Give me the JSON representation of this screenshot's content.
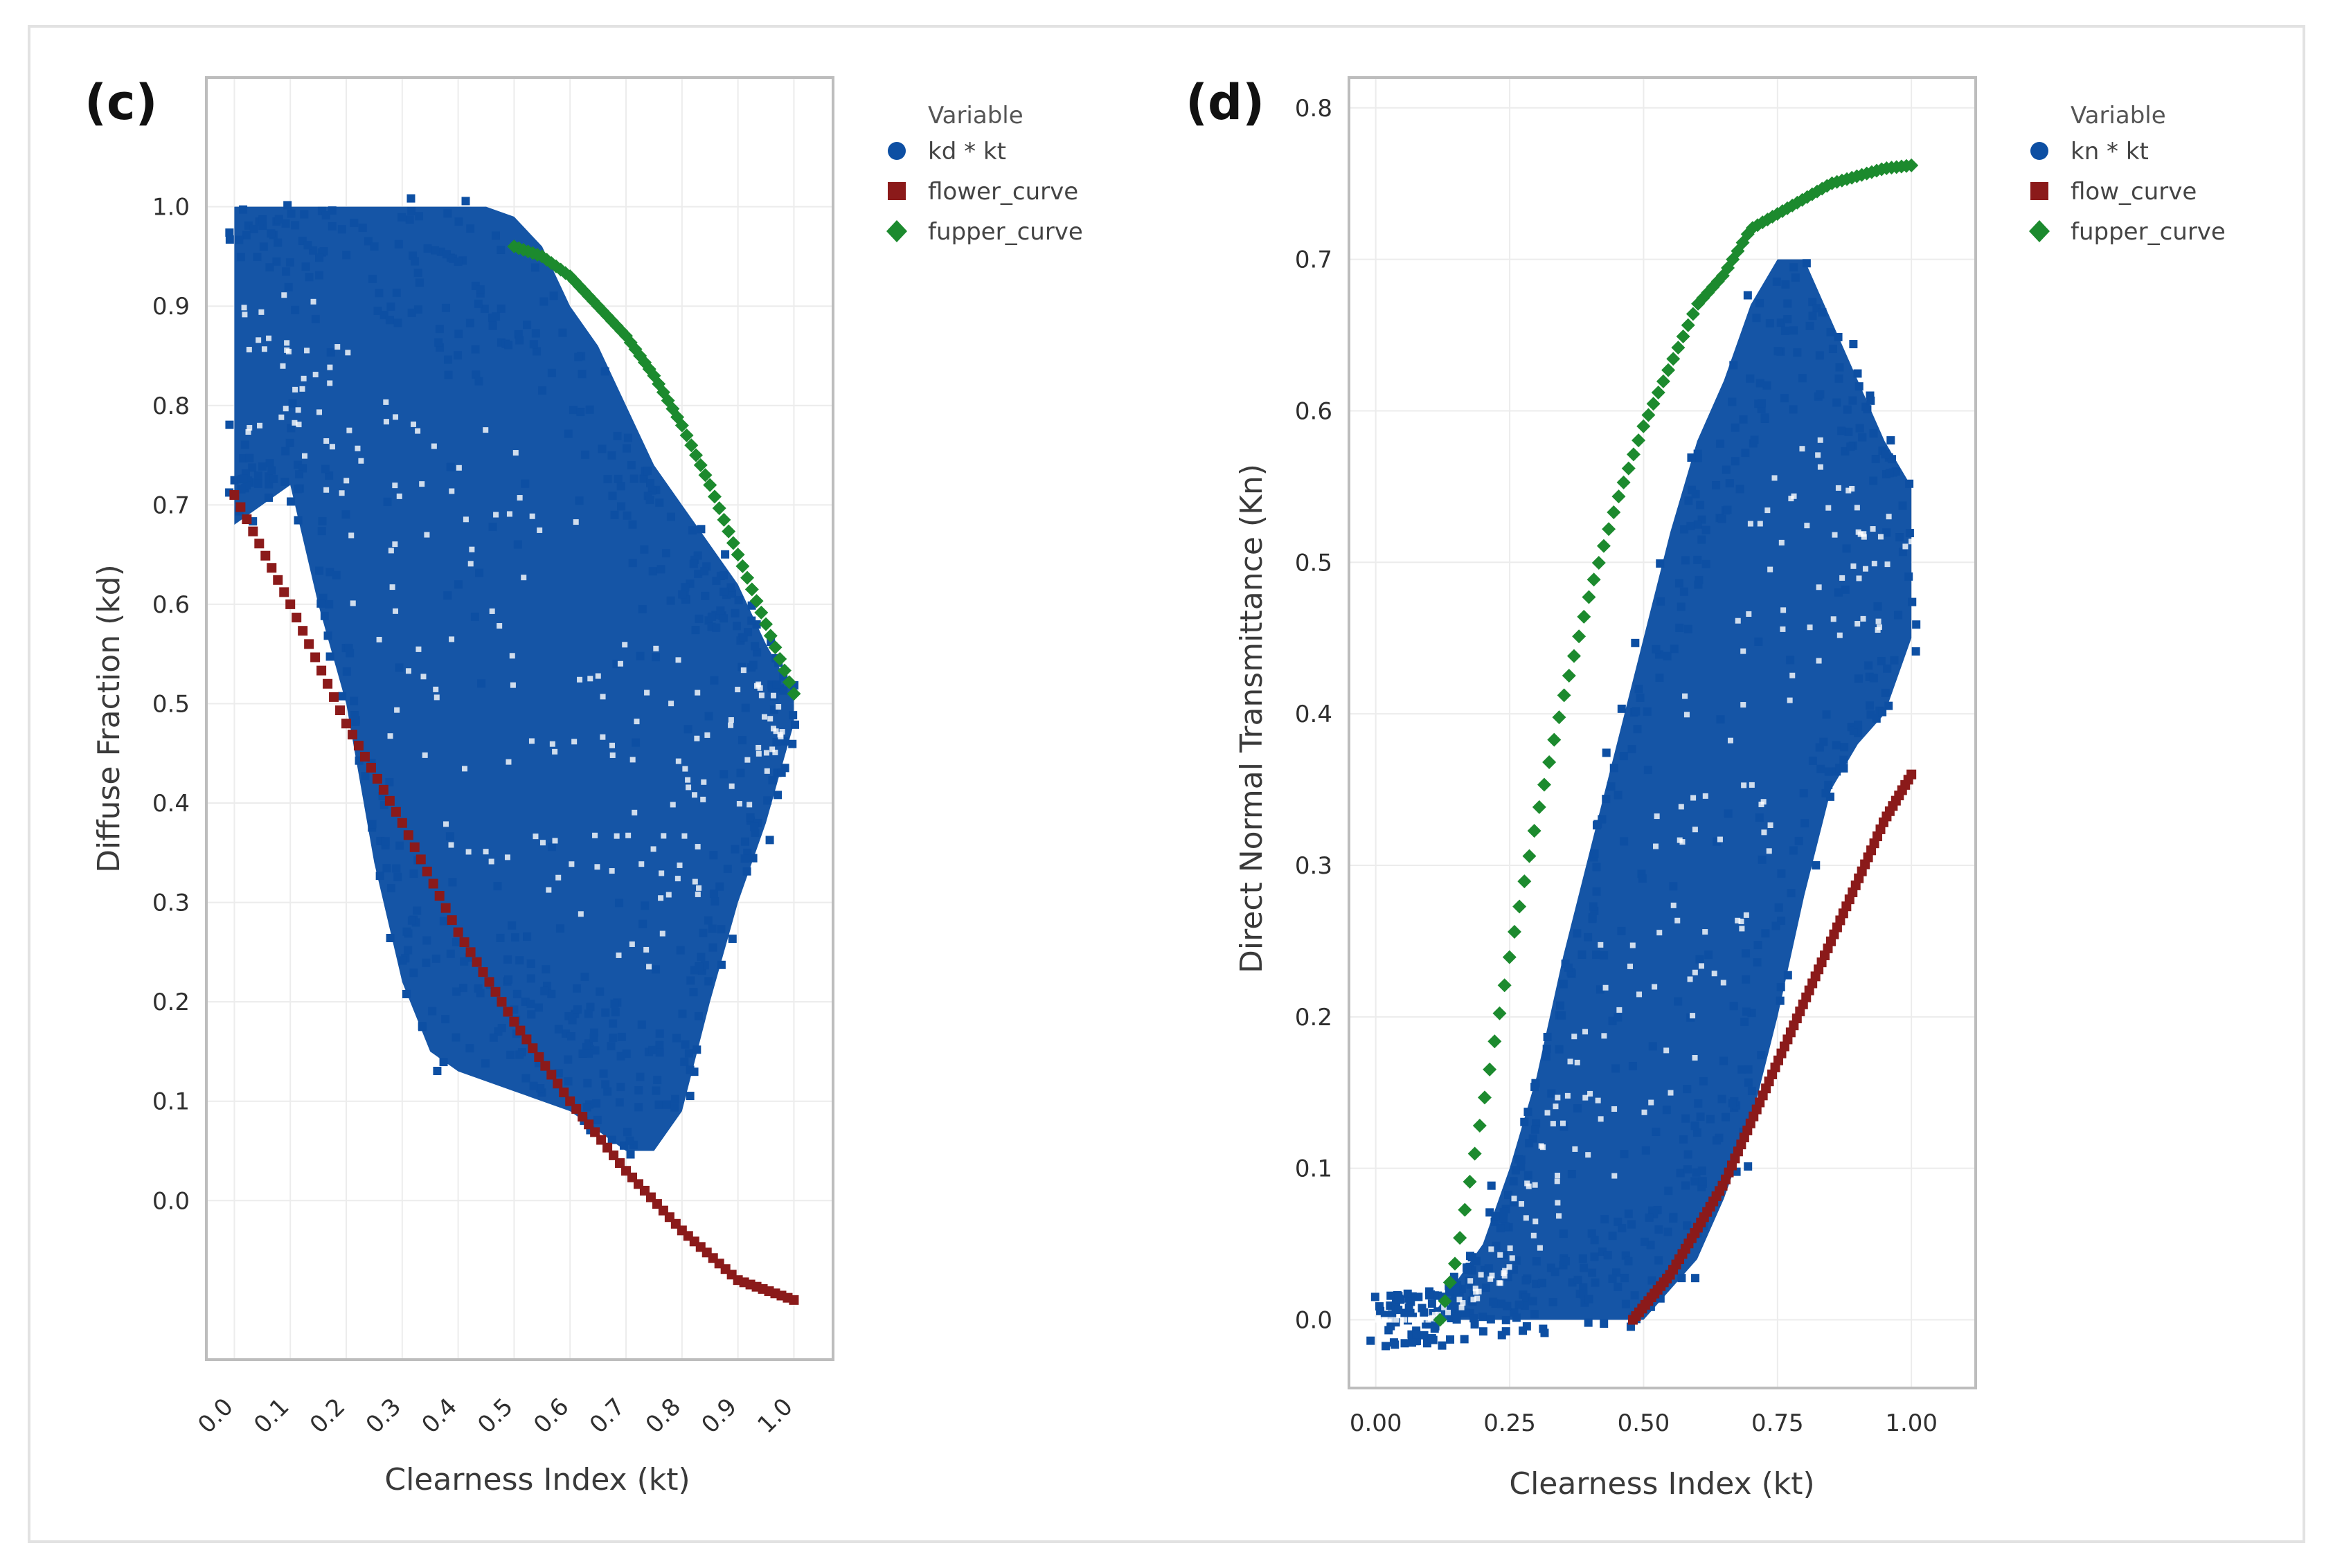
{
  "colors": {
    "observed": "#0d4fa3",
    "lower": "#8b1a1a",
    "upper": "#1c8a2e",
    "grid": "#ececec",
    "frame": "#bdbdbd"
  },
  "chart_data": [
    {
      "panel": "(c)",
      "type": "scatter",
      "xlabel": "Clearness Index (kt)",
      "ylabel": "Diffuse Fraction (kd)",
      "xlim": [
        -0.05,
        1.07
      ],
      "ylim": [
        -0.16,
        1.13
      ],
      "x_ticks": [
        0.0,
        0.1,
        0.2,
        0.3,
        0.4,
        0.5,
        0.6,
        0.7,
        0.8,
        0.9,
        1.0
      ],
      "x_tick_labels": [
        "0.0",
        "0.1",
        "0.2",
        "0.3",
        "0.4",
        "0.5",
        "0.6",
        "0.7",
        "0.8",
        "0.9",
        "1.0"
      ],
      "y_ticks": [
        0.0,
        0.1,
        0.2,
        0.3,
        0.4,
        0.5,
        0.6,
        0.7,
        0.8,
        0.9,
        1.0
      ],
      "y_tick_labels": [
        "0.0",
        "0.1",
        "0.2",
        "0.3",
        "0.4",
        "0.5",
        "0.6",
        "0.7",
        "0.8",
        "0.9",
        "1.0"
      ],
      "legend": {
        "title": "Variable",
        "position": "right",
        "items": [
          {
            "label": "kd * kt",
            "marker": "circle",
            "color": "#0d4fa3"
          },
          {
            "label": "flower_curve",
            "marker": "square",
            "color": "#8b1a1a"
          },
          {
            "label": "fupper_curve",
            "marker": "diamond",
            "color": "#1c8a2e"
          }
        ]
      },
      "series": [
        {
          "name": "kd * kt",
          "kind": "density_band",
          "x": [
            0.0,
            0.05,
            0.1,
            0.15,
            0.2,
            0.25,
            0.3,
            0.35,
            0.4,
            0.45,
            0.5,
            0.55,
            0.6,
            0.65,
            0.7,
            0.75,
            0.8,
            0.85,
            0.9,
            0.95,
            1.0
          ],
          "lower": [
            0.68,
            0.7,
            0.72,
            0.6,
            0.5,
            0.34,
            0.22,
            0.15,
            0.13,
            0.12,
            0.11,
            0.1,
            0.09,
            0.07,
            0.05,
            0.05,
            0.09,
            0.2,
            0.3,
            0.38,
            0.48
          ],
          "upper": [
            1.0,
            1.0,
            1.0,
            1.0,
            1.0,
            1.0,
            1.0,
            1.0,
            1.0,
            1.0,
            0.99,
            0.96,
            0.9,
            0.86,
            0.8,
            0.74,
            0.7,
            0.66,
            0.62,
            0.56,
            0.51
          ]
        },
        {
          "name": "flower_curve",
          "x": [
            0.0,
            0.1,
            0.2,
            0.3,
            0.4,
            0.5,
            0.6,
            0.7,
            0.8,
            0.9,
            1.0
          ],
          "y": [
            0.71,
            0.6,
            0.48,
            0.38,
            0.27,
            0.18,
            0.1,
            0.03,
            -0.03,
            -0.08,
            -0.1
          ]
        },
        {
          "name": "fupper_curve",
          "x": [
            0.5,
            0.55,
            0.6,
            0.65,
            0.7,
            0.75,
            0.8,
            0.85,
            0.9,
            0.95,
            1.0
          ],
          "y": [
            0.96,
            0.95,
            0.93,
            0.9,
            0.87,
            0.83,
            0.78,
            0.72,
            0.65,
            0.58,
            0.51
          ]
        }
      ]
    },
    {
      "panel": "(d)",
      "type": "scatter",
      "xlabel": "Clearness Index (kt)",
      "ylabel": "Direct Normal Transmittance (Kn)",
      "xlim": [
        -0.05,
        1.12
      ],
      "ylim": [
        -0.045,
        0.82
      ],
      "x_ticks": [
        0.0,
        0.25,
        0.5,
        0.75,
        1.0
      ],
      "x_tick_labels": [
        "0.00",
        "0.25",
        "0.50",
        "0.75",
        "1.00"
      ],
      "y_ticks": [
        0.0,
        0.1,
        0.2,
        0.3,
        0.4,
        0.5,
        0.6,
        0.7,
        0.8
      ],
      "y_tick_labels": [
        "0.0",
        "0.1",
        "0.2",
        "0.3",
        "0.4",
        "0.5",
        "0.6",
        "0.7",
        "0.8"
      ],
      "legend": {
        "title": "Variable",
        "position": "right",
        "items": [
          {
            "label": "kn * kt",
            "marker": "circle",
            "color": "#0d4fa3"
          },
          {
            "label": "flow_curve",
            "marker": "square",
            "color": "#8b1a1a"
          },
          {
            "label": "fupper_curve",
            "marker": "diamond",
            "color": "#1c8a2e"
          }
        ]
      },
      "series": [
        {
          "name": "kn * kt",
          "kind": "density_band",
          "x": [
            0.0,
            0.1,
            0.2,
            0.25,
            0.3,
            0.35,
            0.4,
            0.45,
            0.5,
            0.55,
            0.6,
            0.65,
            0.7,
            0.75,
            0.8,
            0.85,
            0.9,
            0.95,
            1.0
          ],
          "lower": [
            0.0,
            0.0,
            0.0,
            0.0,
            0.0,
            0.0,
            0.0,
            0.0,
            0.0,
            0.02,
            0.04,
            0.08,
            0.13,
            0.2,
            0.28,
            0.35,
            0.38,
            0.4,
            0.45
          ],
          "upper": [
            0.0,
            0.0,
            0.05,
            0.1,
            0.16,
            0.24,
            0.31,
            0.38,
            0.45,
            0.52,
            0.58,
            0.62,
            0.67,
            0.7,
            0.7,
            0.66,
            0.62,
            0.58,
            0.55
          ]
        },
        {
          "name": "flow_curve",
          "x": [
            0.48,
            0.55,
            0.6,
            0.65,
            0.7,
            0.75,
            0.8,
            0.85,
            0.9,
            0.95,
            1.0
          ],
          "y": [
            0.0,
            0.03,
            0.06,
            0.09,
            0.13,
            0.17,
            0.21,
            0.25,
            0.29,
            0.33,
            0.36
          ]
        },
        {
          "name": "fupper_curve",
          "x": [
            0.12,
            0.15,
            0.2,
            0.25,
            0.3,
            0.35,
            0.4,
            0.45,
            0.5,
            0.55,
            0.6,
            0.65,
            0.7,
            0.75,
            0.8,
            0.85,
            0.9,
            0.95,
            1.0
          ],
          "y": [
            0.0,
            0.04,
            0.14,
            0.24,
            0.33,
            0.41,
            0.48,
            0.54,
            0.59,
            0.63,
            0.67,
            0.69,
            0.72,
            0.73,
            0.74,
            0.75,
            0.755,
            0.76,
            0.762
          ]
        }
      ]
    }
  ]
}
